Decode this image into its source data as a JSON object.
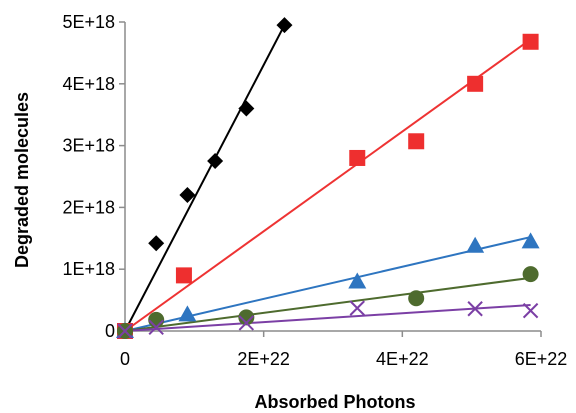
{
  "chart_data": {
    "type": "scatter",
    "title": "",
    "xlabel": "Absorbed Photons",
    "ylabel": "Degraded molecules",
    "xlim": [
      0,
      6e+22
    ],
    "ylim": [
      0,
      5e+18
    ],
    "x_ticks": [
      {
        "value": 0,
        "label": "0"
      },
      {
        "value": 2e+22,
        "label": "2E+22"
      },
      {
        "value": 4e+22,
        "label": "4E+22"
      },
      {
        "value": 6e+22,
        "label": "6E+22"
      }
    ],
    "y_ticks": [
      {
        "value": 0,
        "label": "0"
      },
      {
        "value": 1e+18,
        "label": "1E+18"
      },
      {
        "value": 2e+18,
        "label": "2E+18"
      },
      {
        "value": 3e+18,
        "label": "3E+18"
      },
      {
        "value": 4e+18,
        "label": "4E+18"
      },
      {
        "value": 5e+18,
        "label": "5E+18"
      }
    ],
    "grid": false,
    "legend": "none",
    "series": [
      {
        "marker": "diamond",
        "color": "#000000",
        "line_color": "#000000",
        "points": [
          [
            0,
            0
          ],
          [
            4.5e+21,
            1.42e+18
          ],
          [
            9e+21,
            2.2e+18
          ],
          [
            1.3e+22,
            2.75e+18
          ],
          [
            1.75e+22,
            3.6e+18
          ],
          [
            2.3e+22,
            4.95e+18
          ]
        ],
        "fit": [
          [
            0,
            0
          ],
          [
            2.3e+22,
            4.95e+18
          ]
        ]
      },
      {
        "marker": "square",
        "color": "#ee2f2f",
        "line_color": "#ee3333",
        "points": [
          [
            0,
            0
          ],
          [
            8.5e+21,
            9e+17
          ],
          [
            3.35e+22,
            2.8e+18
          ],
          [
            4.2e+22,
            3.07e+18
          ],
          [
            5.05e+22,
            4e+18
          ],
          [
            5.85e+22,
            4.68e+18
          ]
        ],
        "fit": [
          [
            0,
            0
          ],
          [
            5.85e+22,
            4.72e+18
          ]
        ]
      },
      {
        "marker": "triangle",
        "color": "#2e75c0",
        "line_color": "#2e75c0",
        "points": [
          [
            0,
            0
          ],
          [
            9e+21,
            2.7e+17
          ],
          [
            3.35e+22,
            8e+17
          ],
          [
            5.05e+22,
            1.38e+18
          ],
          [
            5.85e+22,
            1.45e+18
          ]
        ],
        "fit": [
          [
            0,
            0
          ],
          [
            5.85e+22,
            1.52e+18
          ]
        ]
      },
      {
        "marker": "circle",
        "color": "#4e6b2e",
        "line_color": "#4e6b2e",
        "points": [
          [
            0,
            0
          ],
          [
            4.5e+21,
            1.8e+17
          ],
          [
            1.75e+22,
            2.2e+17
          ],
          [
            4.2e+22,
            5.3e+17
          ],
          [
            5.85e+22,
            9.2e+17
          ]
        ],
        "fit": [
          [
            0,
            0
          ],
          [
            5.85e+22,
            8.6e+17
          ]
        ]
      },
      {
        "marker": "x",
        "color": "#7b3fa5",
        "line_color": "#7b3fa5",
        "points": [
          [
            0,
            0
          ],
          [
            4.5e+21,
            6e+16
          ],
          [
            1.75e+22,
            1.3e+17
          ],
          [
            3.35e+22,
            3.7e+17
          ],
          [
            5.05e+22,
            3.6e+17
          ],
          [
            5.85e+22,
            3.3e+17
          ]
        ],
        "fit": [
          [
            0,
            0
          ],
          [
            5.85e+22,
            4.2e+17
          ]
        ]
      }
    ]
  }
}
